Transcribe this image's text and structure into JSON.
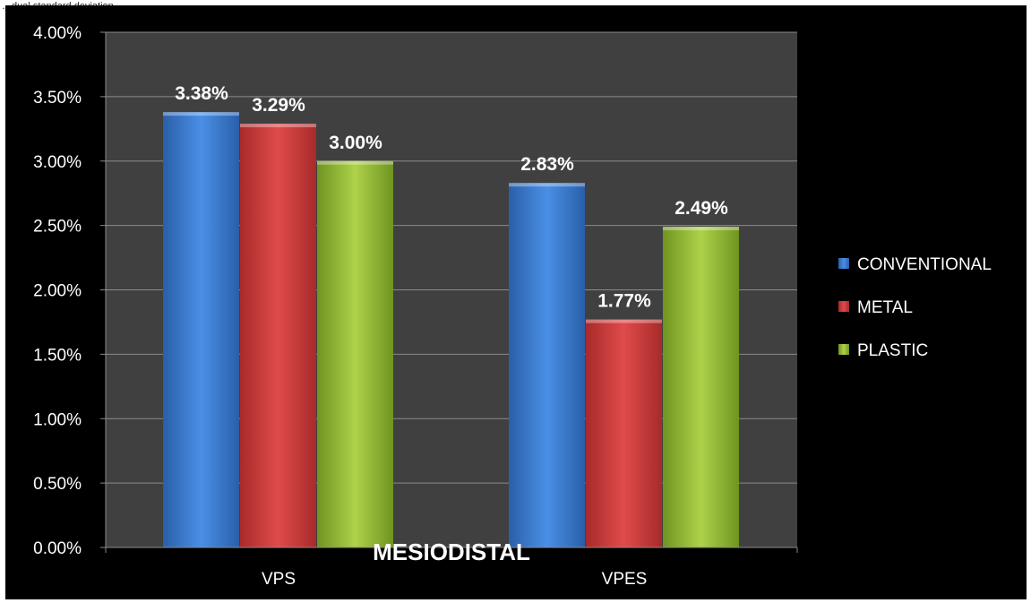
{
  "page": {
    "caption_fragment": "…dual standard deviation…"
  },
  "chart_data": {
    "type": "bar",
    "title": "MESIODISTAL",
    "xlabel": "",
    "ylabel": "",
    "categories": [
      "VPS",
      "VPES"
    ],
    "series": [
      {
        "name": "CONVENTIONAL",
        "values": [
          3.38,
          2.83
        ],
        "color": "#3f7fd6",
        "labels": [
          "3.38%",
          "2.83%"
        ]
      },
      {
        "name": "METAL",
        "values": [
          3.29,
          1.77
        ],
        "color": "#d64040",
        "labels": [
          "3.29%",
          "1.77%"
        ]
      },
      {
        "name": "PLASTIC",
        "values": [
          3.0,
          2.49
        ],
        "color": "#9fc63a",
        "labels": [
          "3.00%",
          "2.49%"
        ]
      }
    ],
    "ylim": [
      0,
      4
    ],
    "yticks": [
      "0.00%",
      "0.50%",
      "1.00%",
      "1.50%",
      "2.00%",
      "2.50%",
      "3.00%",
      "3.50%",
      "4.00%"
    ],
    "ytick_values": [
      0,
      0.5,
      1,
      1.5,
      2,
      2.5,
      3,
      3.5,
      4
    ],
    "grid": true,
    "legend_position": "right",
    "plot_background": "#404040",
    "background": "#000000"
  }
}
